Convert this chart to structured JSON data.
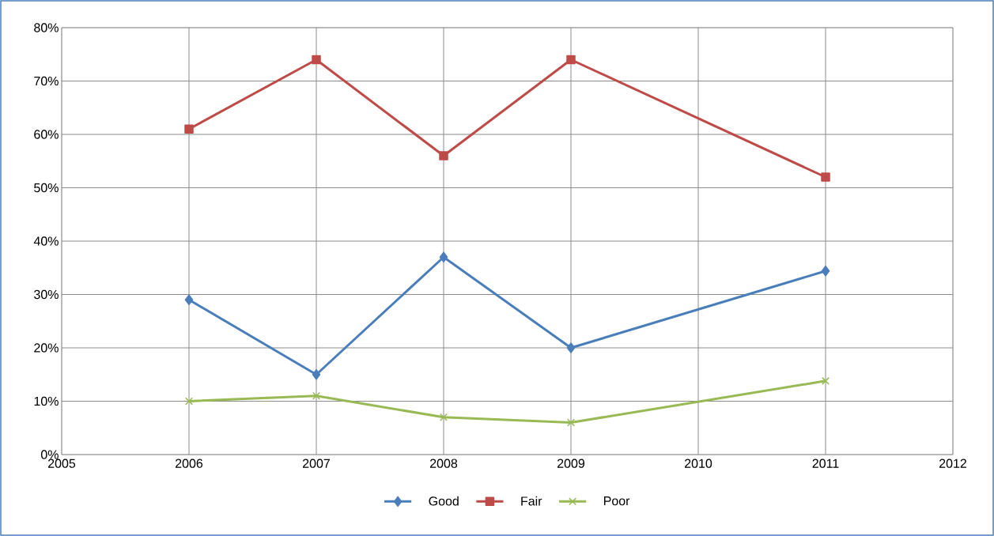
{
  "chart_data": {
    "type": "line",
    "x": [
      2006,
      2007,
      2008,
      2009,
      2011
    ],
    "series": [
      {
        "name": "Good",
        "color": "#4a7ebb",
        "marker": "diamond",
        "values": [
          29,
          15,
          37,
          20,
          34.4
        ]
      },
      {
        "name": "Fair",
        "color": "#be4b48",
        "marker": "square",
        "values": [
          61,
          74,
          56,
          74,
          52
        ]
      },
      {
        "name": "Poor",
        "color": "#98b954",
        "marker": "cross",
        "values": [
          10,
          11,
          7,
          6,
          13.8
        ]
      }
    ],
    "xlim": [
      2005,
      2012
    ],
    "xticks": [
      2005,
      2006,
      2007,
      2008,
      2009,
      2010,
      2011,
      2012
    ],
    "ylim": [
      0,
      80
    ],
    "yticks": [
      {
        "value": 0,
        "label": "0%"
      },
      {
        "value": 10,
        "label": "10%"
      },
      {
        "value": 20,
        "label": "20%"
      },
      {
        "value": 30,
        "label": "30%"
      },
      {
        "value": 40,
        "label": "40%"
      },
      {
        "value": 50,
        "label": "50%"
      },
      {
        "value": 60,
        "label": "60%"
      },
      {
        "value": 70,
        "label": "70%"
      },
      {
        "value": 80,
        "label": "80%"
      }
    ],
    "grid": true,
    "legend": "bottom",
    "line_style": "solid"
  }
}
